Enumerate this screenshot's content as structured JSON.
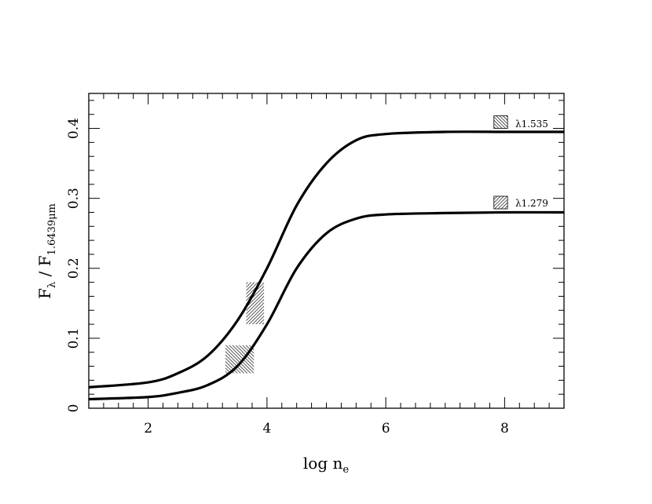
{
  "chart_data": {
    "type": "line",
    "xlabel": {
      "main": "log n",
      "sub": "e"
    },
    "ylabel": {
      "main": "F",
      "main_sub": "λ",
      "sep": " / F",
      "sep_sub": "1.6439μm"
    },
    "xlim": [
      1,
      9
    ],
    "ylim": [
      0,
      0.45
    ],
    "xticks": [
      2,
      4,
      6,
      8
    ],
    "xtick_labels": [
      "2",
      "4",
      "6",
      "8"
    ],
    "yticks": [
      0,
      0.1,
      0.2,
      0.3,
      0.4
    ],
    "ytick_labels": [
      "0",
      "0.1",
      "0.2",
      "0.3",
      "0.4"
    ],
    "grid": false,
    "legend": "none",
    "series": [
      {
        "name": "λ1.535",
        "x": [
          1.0,
          2.0,
          2.5,
          3.0,
          3.5,
          4.0,
          4.5,
          5.0,
          5.5,
          6.0,
          7.0,
          8.0,
          9.0
        ],
        "y": [
          0.03,
          0.037,
          0.05,
          0.075,
          0.125,
          0.2,
          0.29,
          0.35,
          0.383,
          0.392,
          0.395,
          0.395,
          0.395
        ]
      },
      {
        "name": "λ1.279",
        "x": [
          1.0,
          2.0,
          2.5,
          3.0,
          3.5,
          4.0,
          4.5,
          5.0,
          5.5,
          6.0,
          7.0,
          8.0,
          9.0
        ],
        "y": [
          0.013,
          0.016,
          0.022,
          0.033,
          0.06,
          0.12,
          0.2,
          0.25,
          0.271,
          0.277,
          0.279,
          0.28,
          0.28
        ]
      }
    ],
    "observations": [
      {
        "name": "upper-curve-data-box",
        "x": [
          3.65,
          3.95
        ],
        "y": [
          0.12,
          0.18
        ]
      },
      {
        "name": "lower-curve-data-box",
        "x": [
          3.3,
          3.78
        ],
        "y": [
          0.05,
          0.09
        ]
      }
    ],
    "curve_labels": [
      {
        "text": "λ1.535",
        "x": 8.18,
        "y": 0.406,
        "swatch_x": [
          7.82,
          8.05
        ],
        "swatch_y": [
          0.4,
          0.418
        ]
      },
      {
        "text": "λ1.279",
        "x": 8.18,
        "y": 0.293,
        "swatch_x": [
          7.82,
          8.05
        ],
        "swatch_y": [
          0.285,
          0.303
        ]
      }
    ]
  }
}
